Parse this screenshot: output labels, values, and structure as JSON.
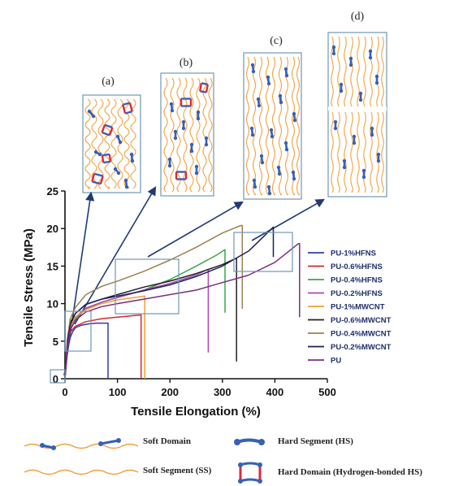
{
  "chart_data": {
    "type": "line",
    "xlabel": "Tensile Elongation (%)",
    "ylabel": "Tensile Stress (MPa)",
    "xlim": [
      0,
      500
    ],
    "ylim": [
      0,
      25
    ],
    "xticks": [
      0,
      100,
      200,
      300,
      400,
      500
    ],
    "yticks": [
      0,
      5,
      10,
      15,
      20,
      25
    ],
    "grid": false,
    "legend_position": "right",
    "series": [
      {
        "name": "PU-1%HFNS",
        "color": "#2b3fa8",
        "x": [
          0,
          5,
          10,
          15,
          20,
          30,
          45,
          60,
          75,
          82,
          82
        ],
        "y": [
          0,
          3.8,
          5.5,
          6.3,
          6.8,
          7.1,
          7.3,
          7.4,
          7.4,
          7.4,
          0
        ]
      },
      {
        "name": "PU-0.6%HFNS",
        "color": "#d8262a",
        "x": [
          0,
          5,
          10,
          20,
          40,
          70,
          100,
          130,
          145,
          145
        ],
        "y": [
          0,
          4.5,
          6.2,
          7.0,
          7.6,
          8.0,
          8.2,
          8.4,
          8.5,
          0
        ]
      },
      {
        "name": "PU-0.4%HFNS",
        "color": "#3aa64b",
        "x": [
          0,
          5,
          10,
          20,
          40,
          70,
          100,
          150,
          200,
          250,
          290,
          305,
          305
        ],
        "y": [
          0,
          5,
          7,
          8,
          9.3,
          10.2,
          10.8,
          11.8,
          13.2,
          15,
          16.5,
          17.2,
          8.8
        ]
      },
      {
        "name": "PU-0.2%HFNS",
        "color": "#b043b8",
        "x": [
          0,
          5,
          10,
          20,
          40,
          70,
          100,
          150,
          200,
          250,
          270,
          273,
          273
        ],
        "y": [
          0,
          5,
          7,
          8.2,
          9.4,
          10.2,
          10.8,
          11.8,
          12.7,
          13.8,
          14.5,
          14.5,
          3.5
        ]
      },
      {
        "name": "PU-1%MWCNT",
        "color": "#f0a030",
        "x": [
          0,
          5,
          10,
          20,
          40,
          70,
          100,
          130,
          152,
          152
        ],
        "y": [
          0,
          5,
          7,
          8.2,
          9.2,
          10.0,
          10.5,
          10.8,
          11.0,
          0
        ]
      },
      {
        "name": "PU-0.6%MWCNT",
        "color": "#222222",
        "x": [
          0,
          5,
          10,
          20,
          40,
          70,
          100,
          150,
          200,
          250,
          300,
          325,
          327,
          327
        ],
        "y": [
          0,
          5.5,
          7.5,
          8.7,
          9.9,
          10.6,
          11.2,
          12.2,
          13.0,
          14.0,
          15.2,
          16.0,
          16.0,
          2.3
        ]
      },
      {
        "name": "PU-0.4%MWCNT",
        "color": "#9e8050",
        "x": [
          0,
          5,
          10,
          20,
          40,
          70,
          100,
          150,
          200,
          250,
          300,
          335,
          338,
          338
        ],
        "y": [
          0,
          5.5,
          8,
          9.5,
          11.2,
          12.3,
          13.0,
          14.3,
          15.8,
          17.5,
          19.4,
          20.4,
          20.4,
          9.3
        ]
      },
      {
        "name": "PU-0.2%MWCNT",
        "color": "#1c1f5c",
        "x": [
          0,
          5,
          10,
          20,
          40,
          70,
          100,
          150,
          200,
          250,
          300,
          350,
          397,
          397
        ],
        "y": [
          0,
          5,
          7.2,
          8.7,
          9.9,
          10.6,
          11.0,
          11.7,
          12.5,
          13.6,
          15.0,
          17.0,
          20.2,
          16.2
        ]
      },
      {
        "name": "PU",
        "color": "#7a2c83",
        "x": [
          0,
          5,
          10,
          20,
          40,
          70,
          100,
          150,
          200,
          250,
          300,
          350,
          400,
          445,
          447,
          447
        ],
        "y": [
          0,
          4.5,
          6.5,
          7.8,
          8.9,
          9.6,
          10.0,
          10.6,
          11.2,
          11.8,
          12.8,
          13.8,
          15.5,
          18.0,
          18.0,
          8.2
        ]
      }
    ]
  },
  "panels": [
    {
      "label": "(a)"
    },
    {
      "label": "(b)"
    },
    {
      "label": "(c)"
    },
    {
      "label": "(d)"
    }
  ],
  "key": {
    "soft_domain": "Soft Domain",
    "soft_segment": "Soft Segment (SS)",
    "hard_segment": "Hard Segment (HS)",
    "hard_domain": "Hard Domain (Hydrogen-bonded HS)"
  },
  "colors": {
    "chain": "#f2a03d",
    "hard_segment": "#3561b8",
    "hard_domain": "#e0283a",
    "panel_border": "#6f98b8",
    "arrow": "#1f3b73"
  }
}
